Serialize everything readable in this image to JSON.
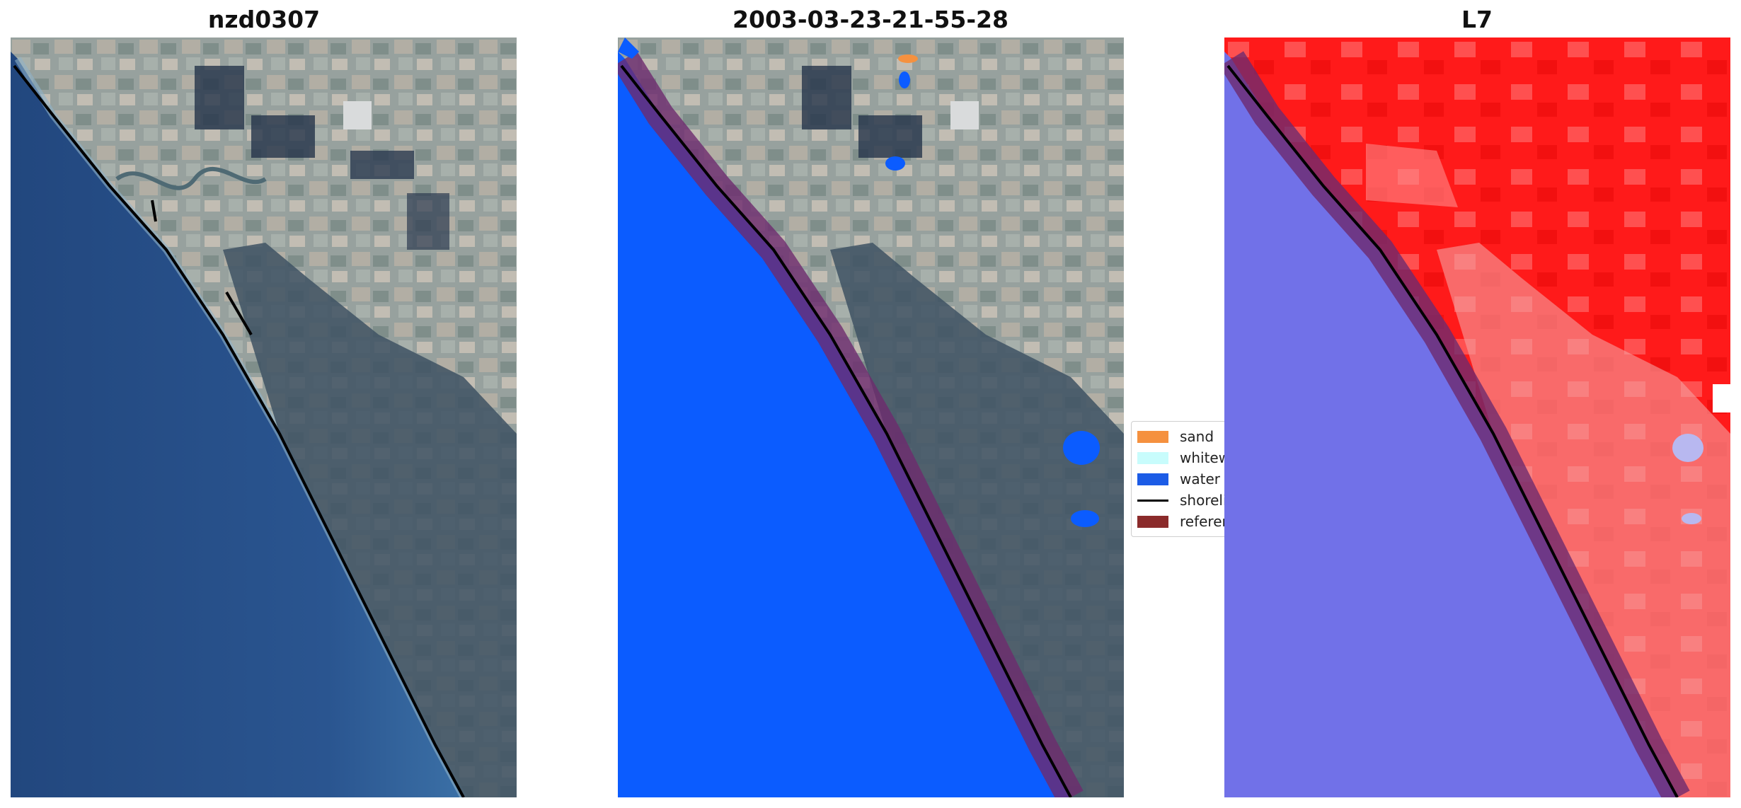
{
  "panels": [
    {
      "title": "nzd0307"
    },
    {
      "title": "2003-03-23-21-55-28"
    },
    {
      "title": "L7"
    }
  ],
  "legend": {
    "items": [
      {
        "label": "sand",
        "color": "#f5913f",
        "kind": "patch"
      },
      {
        "label": "whitewater",
        "color": "#c8fcfc",
        "kind": "patch"
      },
      {
        "label": "water",
        "color": "#1c5ce6",
        "kind": "patch"
      },
      {
        "label": "shoreline",
        "color": "#000000",
        "kind": "line"
      },
      {
        "label": "reference shoreline buffer",
        "color": "#8b2b2b",
        "kind": "patch"
      }
    ]
  },
  "colors": {
    "ocean": "#2a4e86",
    "land": "#8d9a96",
    "water_class": "#0b5cff",
    "land_red": "#ff1414",
    "water_blue": "#7171e8",
    "buffer": "#6e2a6e"
  }
}
